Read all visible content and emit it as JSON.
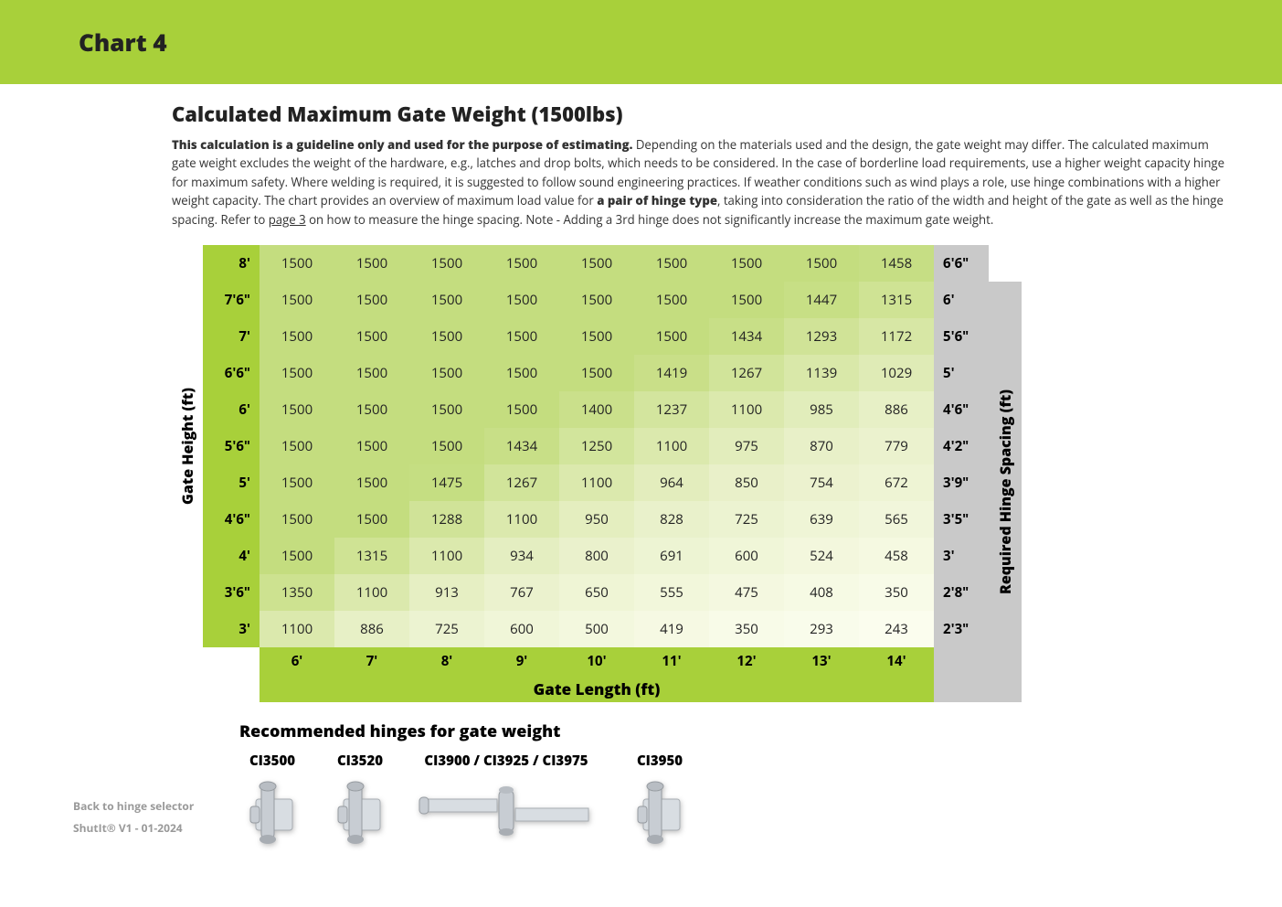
{
  "banner_title": "Chart 4",
  "subtitle": "Calculated Maximum Gate Weight (1500lbs)",
  "description": {
    "lead_bold": "This calculation is a guideline only and used for the purpose of estimating.",
    "body1": " Depending on the materials used and the design, the gate weight may differ. The calculated maximum gate weight excludes the weight of the hardware, e.g., latches and drop bolts, which needs to be considered. In the case of borderline load requirements, use a higher weight capacity hinge for maximum safety. Where welding is required, it is suggested to follow sound engineering practices. If weather conditions such as wind plays a role, use hinge combinations with a higher weight capacity. The chart provides an overview of maximum load value for ",
    "bold2": "a pair of hinge type",
    "body2": ", taking into consideration the ratio of the width and height of the gate as well as the hinge spacing. Refer to ",
    "link": "page 3",
    "body3": " on how to measure the hinge spacing. Note - Adding a 3rd hinge does not significantly increase the maximum gate weight."
  },
  "y_axis_label": "Gate Height (ft)",
  "x_axis_label": "Gate Length (ft)",
  "spacing_axis_label": "Required Hinge Spacing (ft)",
  "row_headers": [
    "8'",
    "7'6\"",
    "7'",
    "6'6\"",
    "6'",
    "5'6\"",
    "5'",
    "4'6\"",
    "4'",
    "3'6\"",
    "3'"
  ],
  "col_headers": [
    "6'",
    "7'",
    "8'",
    "9'",
    "10'",
    "11'",
    "12'",
    "13'",
    "14'"
  ],
  "spacing_labels": [
    "6'6\"",
    "6'",
    "5'6\"",
    "5'",
    "4'6\"",
    "4'2\"",
    "3'9\"",
    "3'5\"",
    "3'",
    "2'8\"",
    "2'3\""
  ],
  "matrix": [
    [
      1500,
      1500,
      1500,
      1500,
      1500,
      1500,
      1500,
      1500,
      1458
    ],
    [
      1500,
      1500,
      1500,
      1500,
      1500,
      1500,
      1500,
      1447,
      1315
    ],
    [
      1500,
      1500,
      1500,
      1500,
      1500,
      1500,
      1434,
      1293,
      1172
    ],
    [
      1500,
      1500,
      1500,
      1500,
      1500,
      1419,
      1267,
      1139,
      1029
    ],
    [
      1500,
      1500,
      1500,
      1500,
      1400,
      1237,
      1100,
      985,
      886
    ],
    [
      1500,
      1500,
      1500,
      1434,
      1250,
      1100,
      975,
      870,
      779
    ],
    [
      1500,
      1500,
      1475,
      1267,
      1100,
      964,
      850,
      754,
      672
    ],
    [
      1500,
      1500,
      1288,
      1100,
      950,
      828,
      725,
      639,
      565
    ],
    [
      1500,
      1315,
      1100,
      934,
      800,
      691,
      600,
      524,
      458
    ],
    [
      1350,
      1100,
      913,
      767,
      650,
      555,
      475,
      408,
      350
    ],
    [
      1100,
      886,
      725,
      600,
      500,
      419,
      350,
      293,
      243
    ]
  ],
  "heat_colors": {
    "min_value": 243,
    "max_value": 1500,
    "color_high": "#c4dd7f",
    "color_mid": "#e8f0c8",
    "color_low": "#fbfdee"
  },
  "row_header_bg": "#a8d03a",
  "col_header_bg": "#a8d03a",
  "spacing_col_bg": "#c9c9c9",
  "rec_title": "Recommended hinges for gate weight",
  "hinges": [
    {
      "label": "CI3500",
      "wide": false
    },
    {
      "label": "CI3520",
      "wide": false
    },
    {
      "label": "CI3900 / CI3925 / CI3975",
      "wide": true
    },
    {
      "label": "CI3950",
      "wide": false
    }
  ],
  "footer": {
    "link": "Back to hinge selector",
    "version": "ShutIt® V1 - 01-2024"
  }
}
